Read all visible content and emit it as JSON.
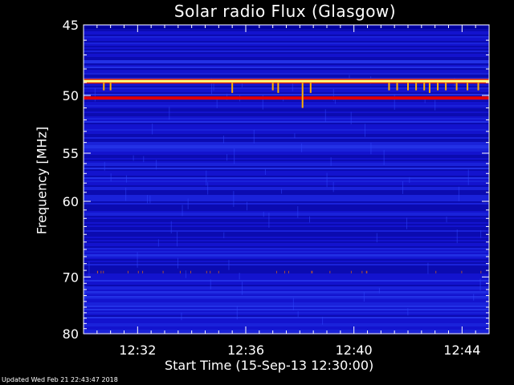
{
  "title": "Solar radio Flux (Glasgow)",
  "footer": "Updated Wed Feb 21 22:43:47 2018",
  "chart_data": {
    "type": "heatmap",
    "title": "Solar radio Flux (Glasgow)",
    "xlabel": "Start Time (15-Sep-13 12:30:00)",
    "ylabel": "Frequency [MHz]",
    "x_ticks": [
      "12:32",
      "12:36",
      "12:40",
      "12:44"
    ],
    "x_tick_minutes": [
      2,
      6,
      10,
      14
    ],
    "xlim_minutes": [
      0,
      15
    ],
    "y_ticks": [
      45,
      50,
      55,
      60,
      70,
      80
    ],
    "ylim": [
      45,
      80
    ],
    "y_scale": "reciprocal",
    "grid": false,
    "colors": {
      "background": "#1010c8",
      "intense_band": "#ffff80",
      "secondary_band": "#e00000",
      "burst": "#ffb000"
    },
    "bands": [
      {
        "freq_mhz": 48.9,
        "level": "intense"
      },
      {
        "freq_mhz": 50.2,
        "level": "strong"
      }
    ],
    "bursts": [
      {
        "minute": 0.75,
        "freq_mhz": 49.6
      },
      {
        "minute": 1.0,
        "freq_mhz": 49.6
      },
      {
        "minute": 5.5,
        "freq_mhz": 49.8
      },
      {
        "minute": 7.0,
        "freq_mhz": 49.6
      },
      {
        "minute": 7.2,
        "freq_mhz": 49.8
      },
      {
        "minute": 8.1,
        "freq_mhz": 51.0
      },
      {
        "minute": 8.4,
        "freq_mhz": 49.8
      },
      {
        "minute": 11.3,
        "freq_mhz": 49.6
      },
      {
        "minute": 11.6,
        "freq_mhz": 49.6
      },
      {
        "minute": 12.0,
        "freq_mhz": 49.6
      },
      {
        "minute": 12.3,
        "freq_mhz": 49.6
      },
      {
        "minute": 12.6,
        "freq_mhz": 49.6
      },
      {
        "minute": 12.8,
        "freq_mhz": 49.8
      },
      {
        "minute": 13.1,
        "freq_mhz": 49.6
      },
      {
        "minute": 13.4,
        "freq_mhz": 49.6
      },
      {
        "minute": 13.8,
        "freq_mhz": 49.6
      },
      {
        "minute": 14.2,
        "freq_mhz": 49.6
      },
      {
        "minute": 14.6,
        "freq_mhz": 49.6
      }
    ]
  }
}
